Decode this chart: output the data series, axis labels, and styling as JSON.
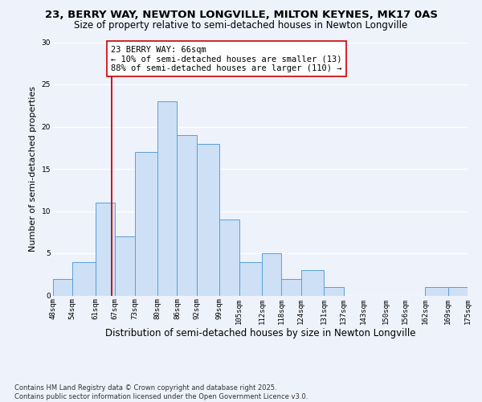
{
  "title": "23, BERRY WAY, NEWTON LONGVILLE, MILTON KEYNES, MK17 0AS",
  "subtitle": "Size of property relative to semi-detached houses in Newton Longville",
  "xlabel": "Distribution of semi-detached houses by size in Newton Longville",
  "ylabel": "Number of semi-detached properties",
  "bin_edges": [
    48,
    54,
    61,
    67,
    73,
    80,
    86,
    92,
    99,
    105,
    112,
    118,
    124,
    131,
    137,
    143,
    150,
    156,
    162,
    169,
    175
  ],
  "bin_counts": [
    2,
    4,
    11,
    7,
    17,
    23,
    19,
    18,
    9,
    4,
    5,
    2,
    3,
    1,
    0,
    0,
    0,
    0,
    1,
    1
  ],
  "bar_color": "#cde0f5",
  "bar_edge_color": "#5a9fd4",
  "vline_x": 66,
  "vline_color": "#cc0000",
  "annotation_text": "23 BERRY WAY: 66sqm\n← 10% of semi-detached houses are smaller (13)\n88% of semi-detached houses are larger (110) →",
  "annotation_box_color": "white",
  "annotation_box_edge_color": "#cc0000",
  "ylim": [
    0,
    30
  ],
  "yticks": [
    0,
    5,
    10,
    15,
    20,
    25,
    30
  ],
  "tick_labels": [
    "48sqm",
    "54sqm",
    "61sqm",
    "67sqm",
    "73sqm",
    "80sqm",
    "86sqm",
    "92sqm",
    "99sqm",
    "105sqm",
    "112sqm",
    "118sqm",
    "124sqm",
    "131sqm",
    "137sqm",
    "143sqm",
    "150sqm",
    "156sqm",
    "162sqm",
    "169sqm",
    "175sqm"
  ],
  "footnote": "Contains HM Land Registry data © Crown copyright and database right 2025.\nContains public sector information licensed under the Open Government Licence v3.0.",
  "background_color": "#eef2fb",
  "grid_color": "white",
  "title_fontsize": 9.5,
  "subtitle_fontsize": 8.5,
  "xlabel_fontsize": 8.5,
  "ylabel_fontsize": 8,
  "annotation_fontsize": 7.5,
  "tick_fontsize": 6.5,
  "footnote_fontsize": 6.0
}
